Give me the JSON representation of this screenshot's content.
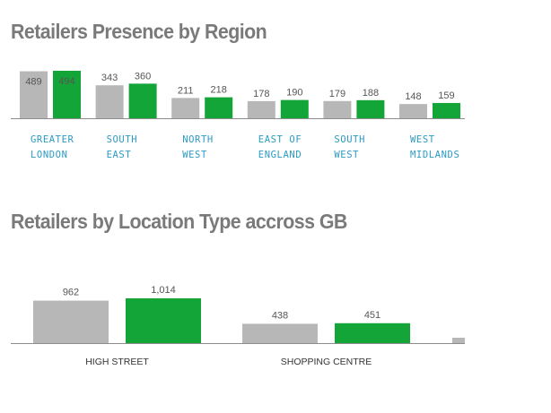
{
  "colors": {
    "series_a": "#b8b7b7",
    "series_b": "#13a537",
    "category_label_1": "#2b9ac4"
  },
  "chart_data": [
    {
      "type": "bar",
      "title": "Retailers Presence by Region",
      "categories": [
        [
          "GREATER",
          "LONDON"
        ],
        [
          "SOUTH",
          "EAST"
        ],
        [
          "NORTH",
          "WEST"
        ],
        [
          "EAST OF",
          "ENGLAND"
        ],
        [
          "SOUTH",
          "WEST"
        ],
        [
          "WEST",
          "MIDLANDS"
        ]
      ],
      "series": [
        {
          "values": [
            489,
            343,
            211,
            178,
            179,
            148
          ],
          "labels": [
            "489",
            "343",
            "211",
            "178",
            "179",
            "148"
          ]
        },
        {
          "values": [
            494,
            360,
            218,
            190,
            188,
            159
          ],
          "labels": [
            "494",
            "360",
            "218",
            "190",
            "188",
            "159"
          ]
        }
      ],
      "ylim": [
        0,
        494
      ]
    },
    {
      "type": "bar",
      "title": "Retailers by Location Type accross GB",
      "categories": [
        "HIGH STREET",
        "SHOPPING CENTRE"
      ],
      "series": [
        {
          "values": [
            962,
            438
          ],
          "labels": [
            "962",
            "438"
          ]
        },
        {
          "values": [
            1014,
            451
          ],
          "labels": [
            "1,014",
            "451"
          ]
        }
      ],
      "ylim": [
        0,
        1014
      ]
    }
  ]
}
